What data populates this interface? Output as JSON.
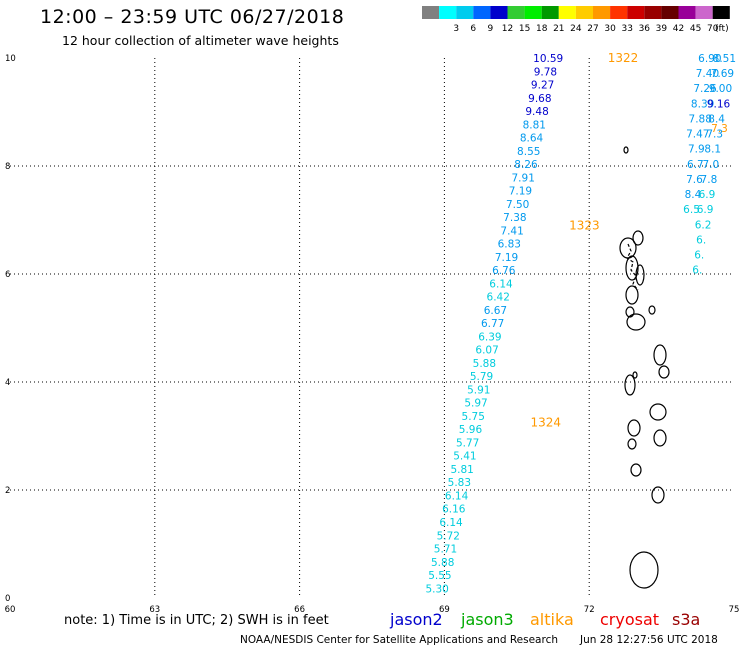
{
  "header": {
    "title": "12:00 – 23:59 UTC 06/27/2018",
    "subtitle": "12 hour collection of altimeter wave heights"
  },
  "colors": {
    "jason2": "#0000cc",
    "jason3": "#00aa00",
    "altika": "#ff9900",
    "cryosat": "#ee0000",
    "s3a": "#990000",
    "pass_label": "#ff9900",
    "wave_low": "#00ccdd",
    "wave_mid": "#0099ee",
    "wave_high": "#0000cc",
    "grid": "#000000",
    "land": "#000000"
  },
  "legend_scale": {
    "unit": "(ft)",
    "bins": [
      {
        "label": "",
        "color": "#808080"
      },
      {
        "label": "3",
        "color": "#00ffff"
      },
      {
        "label": "6",
        "color": "#00ccee"
      },
      {
        "label": "9",
        "color": "#0066ff"
      },
      {
        "label": "12",
        "color": "#0000cc"
      },
      {
        "label": "15",
        "color": "#33cc33"
      },
      {
        "label": "18",
        "color": "#00ee00"
      },
      {
        "label": "21",
        "color": "#009900"
      },
      {
        "label": "24",
        "color": "#ffff00"
      },
      {
        "label": "27",
        "color": "#ffcc00"
      },
      {
        "label": "30",
        "color": "#ff9900"
      },
      {
        "label": "33",
        "color": "#ff3300"
      },
      {
        "label": "36",
        "color": "#cc0000"
      },
      {
        "label": "39",
        "color": "#990000"
      },
      {
        "label": "42",
        "color": "#660000"
      },
      {
        "label": "45",
        "color": "#990099"
      },
      {
        "label": "70",
        "color": "#cc66cc"
      },
      {
        "label": "",
        "color": "#000000"
      }
    ]
  },
  "map": {
    "lon_range": [
      60,
      75
    ],
    "lat_range": [
      0,
      10
    ],
    "x_ticks": [
      {
        "value": 60,
        "label": "60"
      },
      {
        "value": 63,
        "label": "63"
      },
      {
        "value": 66,
        "label": "66"
      },
      {
        "value": 69,
        "label": "69"
      },
      {
        "value": 72,
        "label": "72"
      },
      {
        "value": 75,
        "label": "75"
      }
    ],
    "y_ticks": [
      {
        "value": 0,
        "label": "0"
      },
      {
        "value": 2,
        "label": "2"
      },
      {
        "value": 4,
        "label": "4"
      },
      {
        "value": 6,
        "label": "6"
      },
      {
        "value": 8,
        "label": "8"
      },
      {
        "value": 10,
        "label": "10"
      }
    ],
    "passes": [
      {
        "label": "1322",
        "lon": 72.7,
        "lat": 10.0
      },
      {
        "label": "1323",
        "lon": 71.9,
        "lat": 6.9
      },
      {
        "label": "1324",
        "lon": 71.1,
        "lat": 3.25
      }
    ],
    "track_main": {
      "start": [
        68.85,
        0.18
      ],
      "end": [
        71.15,
        10.0
      ],
      "values": [
        "5.30",
        "5.55",
        "5.88",
        "5.71",
        "5.72",
        "6.14",
        "6.16",
        "6.14",
        "5.83",
        "5.81",
        "5.41",
        "5.77",
        "5.96",
        "5.75",
        "5.97",
        "5.91",
        "5.79",
        "5.88",
        "6.07",
        "6.39",
        "6.77",
        "6.67",
        "6.42",
        "6.14",
        "6.76",
        "7.19",
        "6.83",
        "7.41",
        "7.38",
        "7.50",
        "7.19",
        "7.91",
        "8.26",
        "8.55",
        "8.64",
        "8.81",
        "9.48",
        "9.68",
        "9.27",
        "9.78",
        "10.59"
      ]
    },
    "track_right": {
      "points": [
        {
          "lon": 74.5,
          "lat": 10.0,
          "value": "6.90",
          "tier": "mid"
        },
        {
          "lon": 74.45,
          "lat": 9.72,
          "value": "7.40",
          "tier": "mid"
        },
        {
          "lon": 74.4,
          "lat": 9.44,
          "value": "7.26",
          "tier": "mid"
        },
        {
          "lon": 74.35,
          "lat": 9.16,
          "value": "8.39",
          "tier": "mid"
        },
        {
          "lon": 74.3,
          "lat": 8.88,
          "value": "7.88",
          "tier": "mid"
        },
        {
          "lon": 74.25,
          "lat": 8.6,
          "value": "7.47",
          "tier": "mid"
        },
        {
          "lon": 74.22,
          "lat": 8.32,
          "value": "7.9",
          "tier": "mid"
        },
        {
          "lon": 74.2,
          "lat": 8.04,
          "value": "6.7",
          "tier": "mid"
        },
        {
          "lon": 74.18,
          "lat": 7.76,
          "value": "7.6",
          "tier": "mid"
        },
        {
          "lon": 74.15,
          "lat": 7.48,
          "value": "8.4",
          "tier": "mid"
        },
        {
          "lon": 74.12,
          "lat": 7.2,
          "value": "6.5",
          "tier": "low"
        }
      ],
      "points2": [
        {
          "lon": 74.8,
          "lat": 10.0,
          "value": "8.51",
          "tier": "mid"
        },
        {
          "lon": 74.76,
          "lat": 9.72,
          "value": "7.69",
          "tier": "mid"
        },
        {
          "lon": 74.72,
          "lat": 9.44,
          "value": "9.00",
          "tier": "mid"
        },
        {
          "lon": 74.68,
          "lat": 9.16,
          "value": "9.16",
          "tier": "high"
        },
        {
          "lon": 74.64,
          "lat": 8.88,
          "value": "8.4",
          "tier": "mid"
        },
        {
          "lon": 74.6,
          "lat": 8.6,
          "value": "7.3",
          "tier": "mid"
        },
        {
          "lon": 74.56,
          "lat": 8.32,
          "value": "8.1",
          "tier": "mid"
        },
        {
          "lon": 74.52,
          "lat": 8.04,
          "value": "7.0",
          "tier": "mid"
        },
        {
          "lon": 74.48,
          "lat": 7.76,
          "value": "7.8",
          "tier": "mid"
        },
        {
          "lon": 74.44,
          "lat": 7.48,
          "value": "6.9",
          "tier": "low"
        },
        {
          "lon": 74.4,
          "lat": 7.2,
          "value": "6.9",
          "tier": "low"
        },
        {
          "lon": 74.36,
          "lat": 6.92,
          "value": "6.2",
          "tier": "low"
        },
        {
          "lon": 74.32,
          "lat": 6.64,
          "value": "6.",
          "tier": "low"
        },
        {
          "lon": 74.28,
          "lat": 6.36,
          "value": "6.",
          "tier": "low"
        },
        {
          "lon": 74.24,
          "lat": 6.08,
          "value": "6.",
          "tier": "low"
        }
      ],
      "altika_fragment": {
        "lon": 74.7,
        "lat": 8.7,
        "value": "7.3"
      }
    }
  },
  "footer": {
    "note": "note:  1) Time is in UTC;  2) SWH is in feet",
    "credit": "NOAA/NESDIS Center for Satellite Applications and Research",
    "date": "Jun 28 12:27:56 UTC 2018",
    "satellites": [
      {
        "name": "jason2",
        "color": "#0000cc"
      },
      {
        "name": "jason3",
        "color": "#00aa00"
      },
      {
        "name": "altika",
        "color": "#ff9900"
      },
      {
        "name": "cryosat",
        "color": "#ee0000"
      },
      {
        "name": "s3a",
        "color": "#990000"
      }
    ]
  }
}
